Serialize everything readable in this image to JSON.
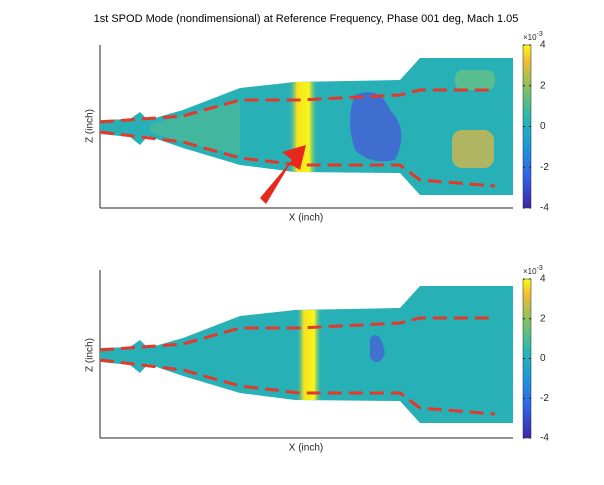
{
  "chart_data": [
    {
      "type": "image",
      "title": "1st SPOD Mode (nondimensional) at Reference Frequency, Phase 001 deg, Mach 1.05",
      "xlabel": "X (inch)",
      "ylabel": "Z (inch)",
      "colorbar_exponent": {
        "base": "×10",
        "power": "-3"
      },
      "clim": [
        -4,
        4
      ],
      "cticks": [
        -4,
        -2,
        0,
        2,
        4
      ]
    },
    {
      "type": "image",
      "xlabel": "X (inch)",
      "ylabel": "Z (inch)",
      "colorbar_exponent": {
        "base": "×10",
        "power": "-3"
      },
      "clim": [
        -4,
        4
      ],
      "cticks": [
        -4,
        -2,
        0,
        2,
        4
      ]
    }
  ]
}
